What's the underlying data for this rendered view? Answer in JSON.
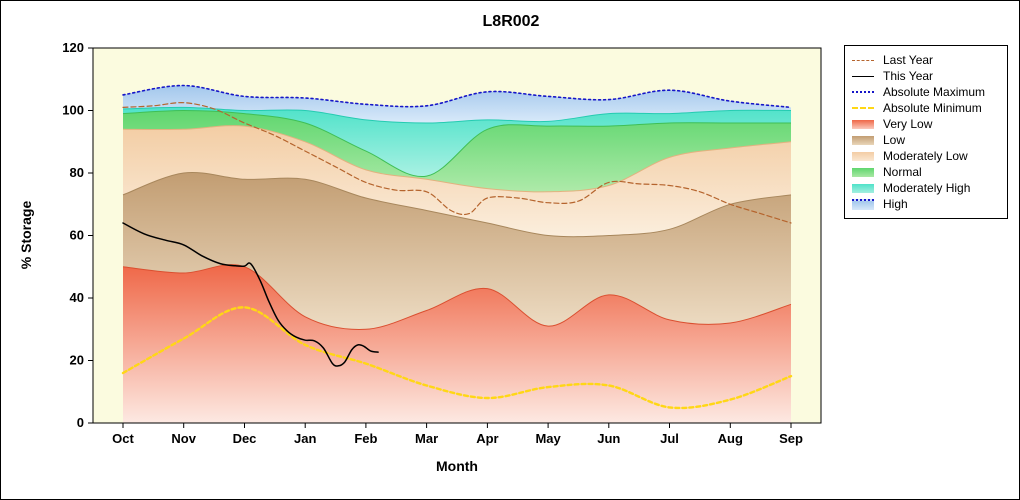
{
  "title": "L8R002",
  "axes": {
    "x_label": "Month",
    "y_label": "% Storage",
    "y_ticks": [
      0,
      20,
      40,
      60,
      80,
      100,
      120
    ],
    "y_min": 0,
    "y_max": 120
  },
  "style": {
    "plot_bg": "#fbfbdf",
    "page_bg": "#ffffff",
    "axis_color": "#000000",
    "bands": [
      {
        "key": "very_low_top",
        "label": "Very Low",
        "fill_top": "#ef6747",
        "fill_bottom": "#fde9e2",
        "edge": "#da4f30"
      },
      {
        "key": "low_top",
        "label": "Low",
        "fill_top": "#c29d72",
        "fill_bottom": "#eddcc3",
        "edge": "#a8875c"
      },
      {
        "key": "moderately_low_top",
        "label": "Moderately Low",
        "fill_top": "#f3cda4",
        "fill_bottom": "#fbeedd",
        "edge": "#e2b27f"
      },
      {
        "key": "normal_top",
        "label": "Normal",
        "fill_top": "#5fd66e",
        "fill_bottom": "#aeeaa9",
        "edge": "#3fbf55"
      },
      {
        "key": "moderately_high_top",
        "label": "Moderately High",
        "fill_top": "#4fe2c9",
        "fill_bottom": "#a9f1e3",
        "edge": "#25cbb1"
      },
      {
        "key": "high_top",
        "label": "High",
        "fill_top": "#a3c7ec",
        "fill_bottom": "#d9eafa",
        "edge": ""
      }
    ],
    "lines": {
      "last_year": {
        "color": "#b5642d",
        "width": 1.2,
        "dash": "5 3"
      },
      "this_year": {
        "color": "#000000",
        "width": 1.5,
        "dash": ""
      },
      "absolute_maximum": {
        "color": "#1616c8",
        "width": 1.6,
        "dash": "2 3"
      },
      "absolute_minimum": {
        "color": "#ffd715",
        "width": 2.4,
        "dash": "4 3"
      }
    }
  },
  "legend": {
    "entries": [
      {
        "label": "Last Year",
        "sample": "line",
        "color": "#b5642d",
        "style": "dashed",
        "weight": 1
      },
      {
        "label": "This Year",
        "sample": "line",
        "color": "#000000",
        "style": "solid",
        "weight": 1
      },
      {
        "label": "Absolute Maximum",
        "sample": "line",
        "color": "#1616c8",
        "style": "dotted",
        "weight": 2
      },
      {
        "label": "Absolute Minimum",
        "sample": "line",
        "color": "#ffd715",
        "style": "dashed",
        "weight": 2
      },
      {
        "label": "Very Low",
        "sample": "band",
        "color": "#ef6747",
        "color2": "#fbc9bb"
      },
      {
        "label": "Low",
        "sample": "band",
        "color": "#c29d72",
        "color2": "#e9d6b9"
      },
      {
        "label": "Moderately Low",
        "sample": "band",
        "color": "#f3cda4",
        "color2": "#fae8d2"
      },
      {
        "label": "Normal",
        "sample": "band",
        "color": "#5fd66e",
        "color2": "#a9e8a4"
      },
      {
        "label": "Moderately High",
        "sample": "band",
        "color": "#4fe2c9",
        "color2": "#a3efe0"
      },
      {
        "label": "High",
        "sample": "band",
        "color": "#a3c7ec",
        "color2": "#d6e8f9",
        "top_dotted": "#1616c8"
      }
    ]
  },
  "chart_data": {
    "type": "area",
    "title": "L8R002",
    "xlabel": "Month",
    "ylabel": "% Storage",
    "ylim": [
      0,
      120
    ],
    "months": [
      "Oct",
      "Nov",
      "Dec",
      "Jan",
      "Feb",
      "Mar",
      "Apr",
      "May",
      "Jun",
      "Jul",
      "Aug",
      "Sep"
    ],
    "band_boundaries": {
      "very_low_top": [
        50,
        48,
        50,
        34,
        30,
        36,
        43,
        31,
        41,
        33,
        32,
        38
      ],
      "low_top": [
        73,
        80,
        78,
        78,
        72,
        68,
        64,
        60,
        60,
        62,
        70,
        73
      ],
      "moderately_low_top": [
        94,
        94,
        95,
        90,
        81,
        78,
        75,
        74,
        76,
        85,
        88,
        90
      ],
      "normal_top": [
        99,
        100,
        99,
        96,
        87,
        79,
        94,
        95,
        95,
        96,
        96,
        96
      ],
      "moderately_high_top": [
        100.5,
        101,
        100,
        100,
        97,
        96,
        97,
        96.5,
        99,
        99,
        100,
        100
      ],
      "high_top": [
        105,
        108,
        104.5,
        104,
        102,
        101.5,
        106,
        104.5,
        103.5,
        106.5,
        103,
        101
      ]
    },
    "lines": {
      "absolute_maximum": [
        105,
        108,
        104.5,
        104,
        102,
        101.5,
        106,
        104.5,
        103.5,
        106.5,
        103,
        101
      ],
      "absolute_minimum": [
        16,
        27,
        37,
        25,
        19,
        12,
        8,
        11.5,
        12,
        5,
        7.5,
        15
      ],
      "last_year": {
        "x": [
          0,
          0.5,
          1,
          1.5,
          2,
          2.5,
          3,
          3.5,
          4,
          4.5,
          5,
          5.4,
          5.7,
          6,
          6.5,
          7,
          7.5,
          8,
          8.5,
          9,
          9.5,
          10,
          10.5,
          11
        ],
        "y": [
          101,
          101.5,
          102.5,
          100.5,
          96,
          92,
          87,
          82,
          77,
          74.5,
          74,
          68,
          67,
          72,
          72,
          70.5,
          71,
          77,
          76.5,
          76,
          74,
          70,
          67,
          64
        ]
      },
      "this_year": {
        "x": [
          0,
          0.35,
          0.7,
          1,
          1.3,
          1.6,
          1.85,
          2.0,
          2.1,
          2.25,
          2.4,
          2.55,
          2.7,
          2.85,
          3.0,
          3.15,
          3.3,
          3.45,
          3.55,
          3.65,
          3.77,
          3.87,
          3.97,
          4.08,
          4.2
        ],
        "y": [
          64,
          60.5,
          58.5,
          57,
          53.5,
          51,
          50.3,
          50.2,
          51,
          46,
          39,
          33,
          29.5,
          27.5,
          26.5,
          26.3,
          24,
          19,
          18.3,
          19.5,
          23.5,
          25,
          24.5,
          23,
          22.7
        ]
      }
    }
  }
}
